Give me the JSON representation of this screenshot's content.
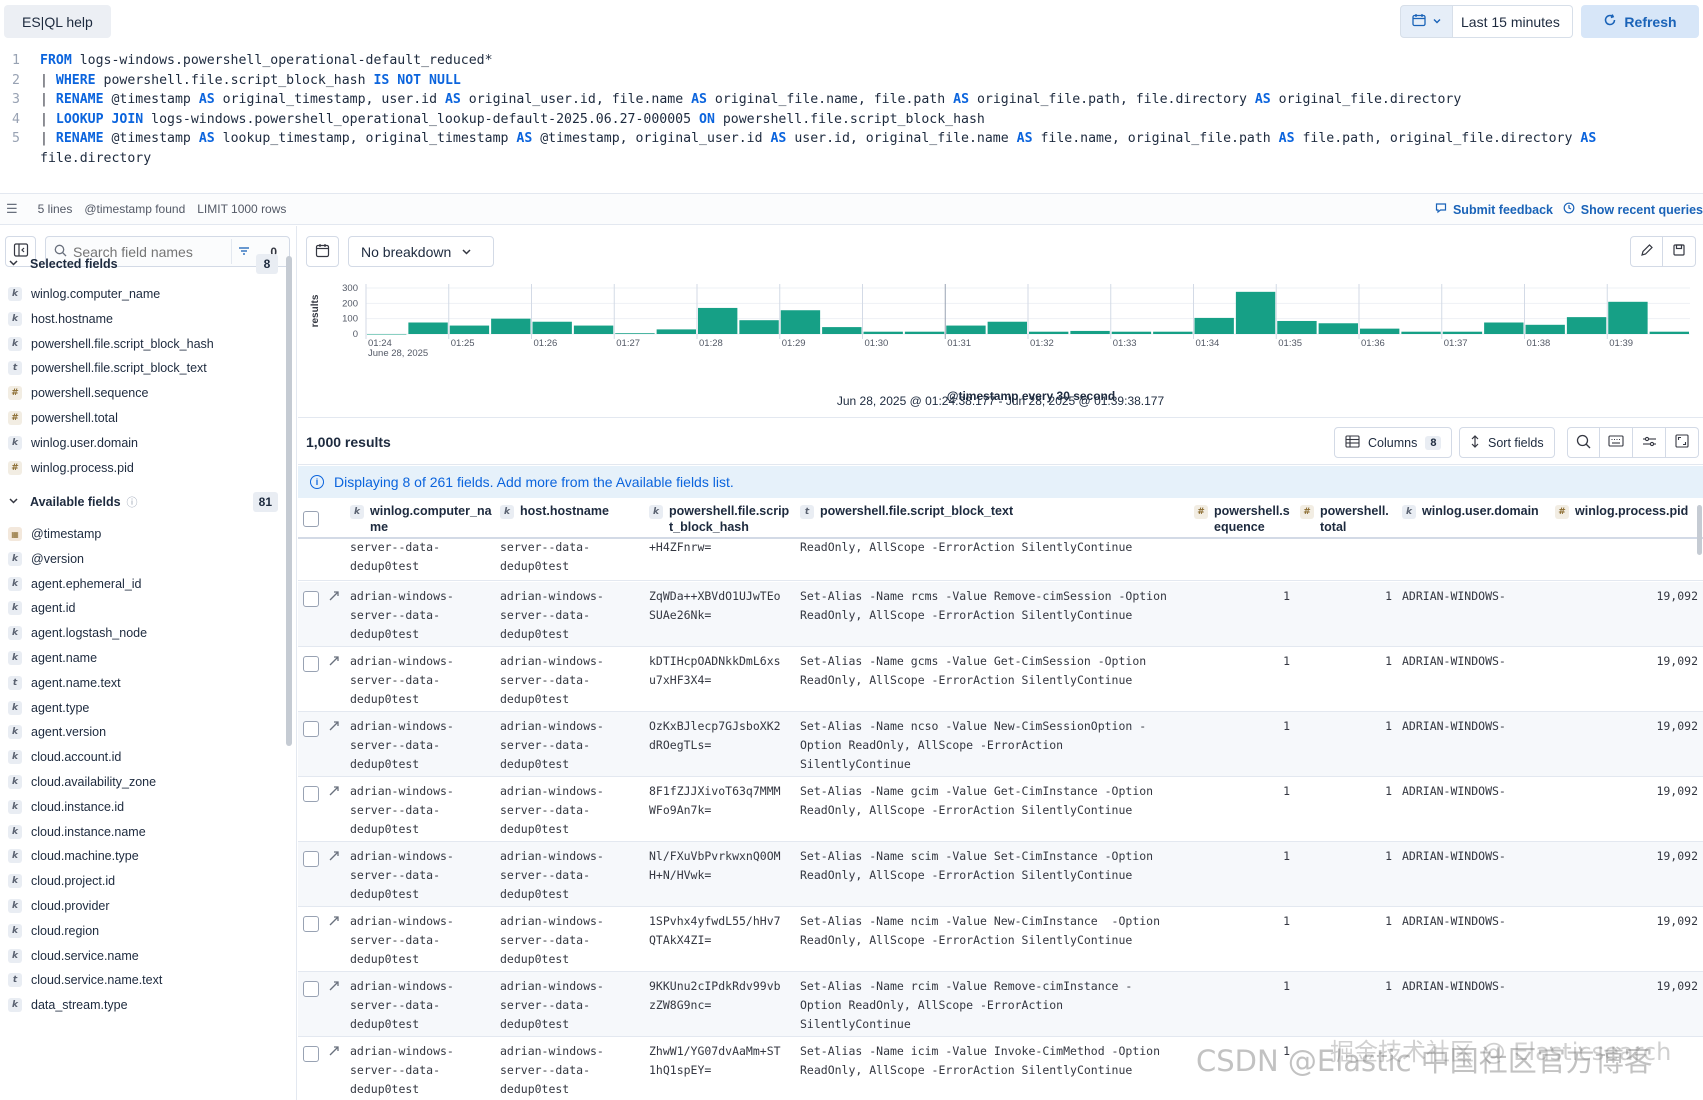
{
  "topbar": {
    "esql_help": "ES|QL help",
    "date_range": "Last 15 minutes",
    "refresh": "Refresh"
  },
  "editor": {
    "lines": [
      {
        "num": "1",
        "parts": [
          {
            "t": "kw",
            "v": "FROM"
          },
          {
            "t": "txt",
            "v": " logs-windows.powershell_operational-default_reduced*"
          }
        ]
      },
      {
        "num": "2",
        "parts": [
          {
            "t": "pipe",
            "v": "| "
          },
          {
            "t": "kwp",
            "v": "WHERE"
          },
          {
            "t": "txt",
            "v": " powershell.file.script_block_hash "
          },
          {
            "t": "kwp",
            "v": "IS NOT NULL"
          }
        ]
      },
      {
        "num": "3",
        "parts": [
          {
            "t": "pipe",
            "v": "| "
          },
          {
            "t": "kwp",
            "v": "RENAME"
          },
          {
            "t": "txt",
            "v": " @timestamp "
          },
          {
            "t": "kwp",
            "v": "AS"
          },
          {
            "t": "txt",
            "v": " original_timestamp, user.id "
          },
          {
            "t": "kwp",
            "v": "AS"
          },
          {
            "t": "txt",
            "v": " original_user.id, file.name "
          },
          {
            "t": "kwp",
            "v": "AS"
          },
          {
            "t": "txt",
            "v": " original_file.name, file.path "
          },
          {
            "t": "kwp",
            "v": "AS"
          },
          {
            "t": "txt",
            "v": " original_file.path, file.directory "
          },
          {
            "t": "kwp",
            "v": "AS"
          },
          {
            "t": "txt",
            "v": " original_file.directory"
          }
        ]
      },
      {
        "num": "4",
        "parts": [
          {
            "t": "pipe",
            "v": "| "
          },
          {
            "t": "kwp",
            "v": "LOOKUP JOIN"
          },
          {
            "t": "txt",
            "v": " logs-windows.powershell_operational_lookup-default-2025.06.27-000005 "
          },
          {
            "t": "kwp",
            "v": "ON"
          },
          {
            "t": "txt",
            "v": " powershell.file.script_block_hash"
          }
        ]
      },
      {
        "num": "5",
        "parts": [
          {
            "t": "pipe",
            "v": "| "
          },
          {
            "t": "kwp",
            "v": "RENAME"
          },
          {
            "t": "txt",
            "v": " @timestamp "
          },
          {
            "t": "kwp",
            "v": "AS"
          },
          {
            "t": "txt",
            "v": " lookup_timestamp, original_timestamp "
          },
          {
            "t": "kwp",
            "v": "AS"
          },
          {
            "t": "txt",
            "v": " @timestamp, original_user.id "
          },
          {
            "t": "kwp",
            "v": "AS"
          },
          {
            "t": "txt",
            "v": " user.id, original_file.name "
          },
          {
            "t": "kwp",
            "v": "AS"
          },
          {
            "t": "txt",
            "v": " file.name, original_file.path "
          },
          {
            "t": "kwp",
            "v": "AS"
          },
          {
            "t": "txt",
            "v": " file.path, original_file.directory "
          },
          {
            "t": "kwp",
            "v": "AS"
          }
        ]
      },
      {
        "num": "",
        "parts": [
          {
            "t": "txt",
            "v": "file.directory"
          }
        ]
      }
    ]
  },
  "status": {
    "lines": "5 lines",
    "timestamp": "@timestamp found",
    "limit": "LIMIT 1000 rows",
    "feedback": "Submit feedback",
    "recent": "Show recent queries"
  },
  "sidebar": {
    "search_placeholder": "Search field names",
    "filter_count": "0",
    "selected_label": "Selected fields",
    "selected_count": "8",
    "selected": [
      {
        "type": "k",
        "name": "winlog.computer_name"
      },
      {
        "type": "k",
        "name": "host.hostname"
      },
      {
        "type": "k",
        "name": "powershell.file.script_block_hash"
      },
      {
        "type": "t",
        "name": "powershell.file.script_block_text"
      },
      {
        "type": "#",
        "name": "powershell.sequence"
      },
      {
        "type": "#",
        "name": "powershell.total"
      },
      {
        "type": "k",
        "name": "winlog.user.domain"
      },
      {
        "type": "#",
        "name": "winlog.process.pid"
      }
    ],
    "available_label": "Available fields",
    "available_count": "81",
    "available": [
      {
        "type": "date",
        "name": "@timestamp"
      },
      {
        "type": "k",
        "name": "@version"
      },
      {
        "type": "k",
        "name": "agent.ephemeral_id"
      },
      {
        "type": "k",
        "name": "agent.id"
      },
      {
        "type": "k",
        "name": "agent.logstash_node"
      },
      {
        "type": "k",
        "name": "agent.name"
      },
      {
        "type": "t",
        "name": "agent.name.text"
      },
      {
        "type": "k",
        "name": "agent.type"
      },
      {
        "type": "k",
        "name": "agent.version"
      },
      {
        "type": "k",
        "name": "cloud.account.id"
      },
      {
        "type": "k",
        "name": "cloud.availability_zone"
      },
      {
        "type": "k",
        "name": "cloud.instance.id"
      },
      {
        "type": "k",
        "name": "cloud.instance.name"
      },
      {
        "type": "k",
        "name": "cloud.machine.type"
      },
      {
        "type": "k",
        "name": "cloud.project.id"
      },
      {
        "type": "k",
        "name": "cloud.provider"
      },
      {
        "type": "k",
        "name": "cloud.region"
      },
      {
        "type": "k",
        "name": "cloud.service.name"
      },
      {
        "type": "t",
        "name": "cloud.service.name.text"
      },
      {
        "type": "k",
        "name": "data_stream.type"
      }
    ]
  },
  "chart": {
    "breakdown": "No breakdown",
    "ylabel": "results",
    "xlabel": "@timestamp every 30 second",
    "range": "Jun 28, 2025 @ 01:24:38.177 - Jun 28, 2025 @ 01:39:38.177",
    "first_tick_date": "June 28, 2025"
  },
  "chart_data": {
    "type": "bar",
    "ylim": [
      0,
      300
    ],
    "yticks": [
      "300",
      "200",
      "100",
      "0"
    ],
    "xticks": [
      "01:24",
      "01:25",
      "01:26",
      "01:27",
      "01:28",
      "01:29",
      "01:30",
      "01:31",
      "01:32",
      "01:33",
      "01:34",
      "01:35",
      "01:36",
      "01:37",
      "01:38",
      "01:39"
    ],
    "values": [
      0,
      75,
      55,
      100,
      80,
      55,
      5,
      30,
      170,
      90,
      155,
      45,
      15,
      15,
      55,
      80,
      15,
      20,
      15,
      15,
      105,
      275,
      85,
      70,
      35,
      15,
      15,
      75,
      60,
      110,
      210,
      15
    ],
    "color": "#16a086"
  },
  "results": {
    "count": "1,000 results",
    "columns_label": "Columns",
    "columns_count": "8",
    "sort_label": "Sort fields",
    "callout": "Displaying 8 of 261 fields. Add more from the Available fields list."
  },
  "grid": {
    "headers": [
      {
        "type": "k",
        "label": "winlog.computer_name"
      },
      {
        "type": "k",
        "label": "host.hostname"
      },
      {
        "type": "k",
        "label": "powershell.file.script_block_hash"
      },
      {
        "type": "t",
        "label": "powershell.file.script_block_text"
      },
      {
        "type": "#",
        "label": "powershell.sequence"
      },
      {
        "type": "#",
        "label": "powershell.total"
      },
      {
        "type": "k",
        "label": "winlog.user.domain"
      },
      {
        "type": "#",
        "label": "winlog.process.pid"
      }
    ],
    "header_display": [
      "winlog.computer_na\nme",
      "host.hostname",
      "powershell.file.scrip\nt_block_hash",
      "powershell.file.script_block_text",
      "powershell.s\nequence",
      "powershell.\ntotal",
      "winlog.user.domain",
      "winlog.process.pid"
    ],
    "partial_row": {
      "computer": "server--data-\ndedup0test",
      "host": "server--data-\ndedup0test",
      "hash": "+H4ZFnrw=",
      "text": "ReadOnly, AllScope -ErrorAction SilentlyContinue"
    },
    "rows": [
      {
        "computer": "adrian-windows-\nserver--data-\ndedup0test",
        "host": "adrian-windows-\nserver--data-\ndedup0test",
        "hash": "ZqWDa++XBVdO1UJwTEo\nSUAe26Nk=",
        "text": "Set-Alias -Name rcms -Value Remove-cimSession -Option\nReadOnly, AllScope -ErrorAction SilentlyContinue",
        "seq": "1",
        "total": "1",
        "domain": "ADRIAN-WINDOWS-",
        "pid": "19,092"
      },
      {
        "computer": "adrian-windows-\nserver--data-\ndedup0test",
        "host": "adrian-windows-\nserver--data-\ndedup0test",
        "hash": "kDTIHcpOADNkkDmL6xs\nu7xHF3X4=",
        "text": "Set-Alias -Name gcms -Value Get-CimSession -Option\nReadOnly, AllScope -ErrorAction SilentlyContinue",
        "seq": "1",
        "total": "1",
        "domain": "ADRIAN-WINDOWS-",
        "pid": "19,092"
      },
      {
        "computer": "adrian-windows-\nserver--data-\ndedup0test",
        "host": "adrian-windows-\nserver--data-\ndedup0test",
        "hash": "OzKxBJlecp7GJsboXK2\ndROegTLs=",
        "text": "Set-Alias -Name ncso -Value New-CimSessionOption -\nOption ReadOnly, AllScope -ErrorAction\nSilentlyContinue",
        "seq": "1",
        "total": "1",
        "domain": "ADRIAN-WINDOWS-",
        "pid": "19,092"
      },
      {
        "computer": "adrian-windows-\nserver--data-\ndedup0test",
        "host": "adrian-windows-\nserver--data-\ndedup0test",
        "hash": "8F1fZJJXivoT63q7MMM\nWFo9An7k=",
        "text": "Set-Alias -Name gcim -Value Get-CimInstance -Option\nReadOnly, AllScope -ErrorAction SilentlyContinue",
        "seq": "1",
        "total": "1",
        "domain": "ADRIAN-WINDOWS-",
        "pid": "19,092"
      },
      {
        "computer": "adrian-windows-\nserver--data-\ndedup0test",
        "host": "adrian-windows-\nserver--data-\ndedup0test",
        "hash": "Nl/FXuVbPvrkwxnQ0OM\nH+N/HVwk=",
        "text": "Set-Alias -Name scim -Value Set-CimInstance -Option\nReadOnly, AllScope -ErrorAction SilentlyContinue",
        "seq": "1",
        "total": "1",
        "domain": "ADRIAN-WINDOWS-",
        "pid": "19,092"
      },
      {
        "computer": "adrian-windows-\nserver--data-\ndedup0test",
        "host": "adrian-windows-\nserver--data-\ndedup0test",
        "hash": "1SPvhx4yfwdL55/hHv7\nQTAkX4ZI=",
        "text": "Set-Alias -Name ncim -Value New-CimInstance  -Option\nReadOnly, AllScope -ErrorAction SilentlyContinue",
        "seq": "1",
        "total": "1",
        "domain": "ADRIAN-WINDOWS-",
        "pid": "19,092"
      },
      {
        "computer": "adrian-windows-\nserver--data-\ndedup0test",
        "host": "adrian-windows-\nserver--data-\ndedup0test",
        "hash": "9KKUnu2cIPdkRdv99vb\nzZW8G9nc=",
        "text": "Set-Alias -Name rcim -Value Remove-cimInstance -\nOption ReadOnly, AllScope -ErrorAction\nSilentlyContinue",
        "seq": "1",
        "total": "1",
        "domain": "ADRIAN-WINDOWS-",
        "pid": "19,092"
      },
      {
        "computer": "adrian-windows-\nserver--data-\ndedup0test",
        "host": "adrian-windows-\nserver--data-\ndedup0test",
        "hash": "ZhwW1/YG07dvAaMm+ST\n1hQ1spEY=",
        "text": "Set-Alias -Name icim -Value Invoke-CimMethod -Option\nReadOnly, AllScope -ErrorAction SilentlyContinue",
        "seq": "1",
        "total": "",
        "domain": "",
        "pid": ""
      }
    ]
  },
  "watermark": "CSDN @Elastic 中国社区官方博客",
  "watermark2": "掘金技术社区 @ Elasticsearch"
}
